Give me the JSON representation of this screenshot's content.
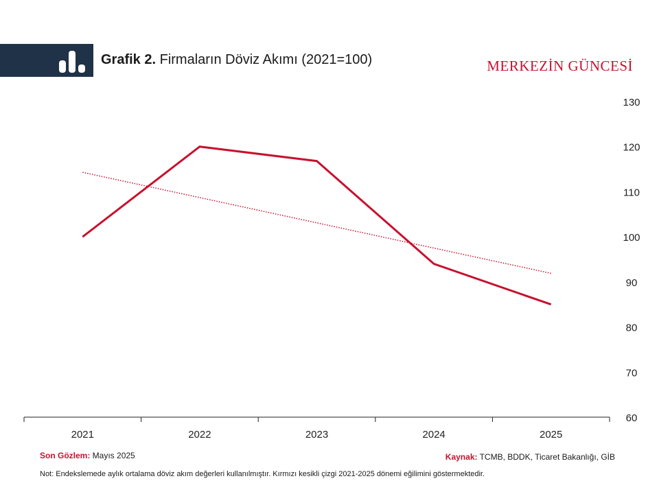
{
  "header": {
    "title_bold": "Grafik 2.",
    "title_rest": " Firmaların Döviz Akımı (2021=100)",
    "brand": "MERKEZİN GÜNCESİ",
    "icon": "bar-chart-icon",
    "band_color": "#1f3247",
    "accent_color": "#c8102e"
  },
  "chart_data": {
    "type": "line",
    "title": "Firmaların Döviz Akımı (2021=100)",
    "categories": [
      "2021",
      "2022",
      "2023",
      "2024",
      "2025"
    ],
    "series": [
      {
        "values": [
          100,
          120,
          116.8,
          94,
          85
        ],
        "style": "solid",
        "color": "#c8102e"
      },
      {
        "values": [
          114.3,
          108.7,
          103.1,
          97.5,
          91.9
        ],
        "style": "dotted",
        "color": "#c8102e"
      }
    ],
    "ylim": [
      60,
      130
    ],
    "yticks": [
      "60",
      "70",
      "80",
      "90",
      "100",
      "110",
      "120",
      "130"
    ],
    "y_axis_position": "right",
    "grid": false
  },
  "footer": {
    "last_obs_label": "Son Gözlem:",
    "last_obs_value": " Mayıs 2025",
    "source_label": "Kaynak:",
    "source_value": " TCMB, BDDK, Ticaret Bakanlığı, GİB",
    "note": "Not: Endekslemede aylık ortalama döviz akım değerleri kullanılmıştır. Kırmızı kesikli çizgi 2021-2025 dönemi eğilimini göstermektedir."
  }
}
